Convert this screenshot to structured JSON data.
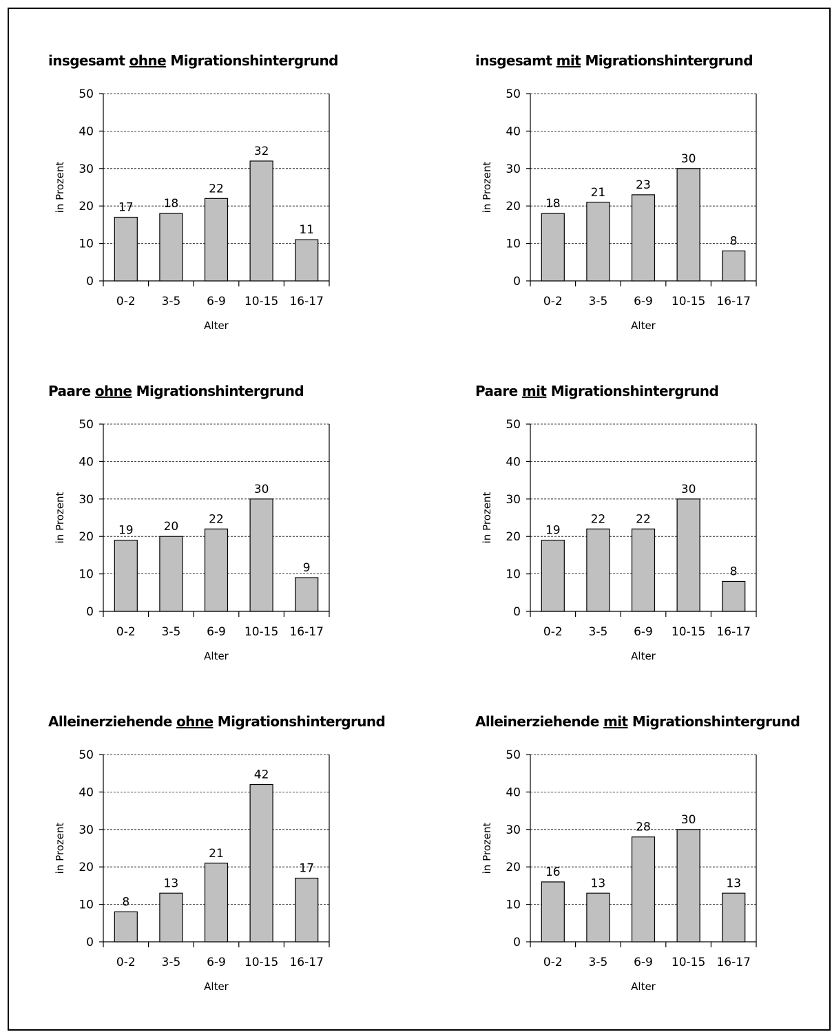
{
  "chart_data": [
    {
      "type": "bar",
      "title": {
        "prefix": "insgesamt ",
        "emphasis": "ohne",
        "suffix": " Migrationshintergrund"
      },
      "categories": [
        "0-2",
        "3-5",
        "6-9",
        "10-15",
        "16-17"
      ],
      "values": [
        17,
        18,
        22,
        32,
        11
      ],
      "xlabel": "Alter",
      "ylabel": "in Prozent",
      "ylim": [
        0,
        50
      ],
      "yticks": [
        0,
        10,
        20,
        30,
        40,
        50
      ],
      "grid": true
    },
    {
      "type": "bar",
      "title": {
        "prefix": "insgesamt ",
        "emphasis": "mit",
        "suffix": " Migrationshintergrund"
      },
      "categories": [
        "0-2",
        "3-5",
        "6-9",
        "10-15",
        "16-17"
      ],
      "values": [
        18,
        21,
        23,
        30,
        8
      ],
      "xlabel": "Alter",
      "ylabel": "in Prozent",
      "ylim": [
        0,
        50
      ],
      "yticks": [
        0,
        10,
        20,
        30,
        40,
        50
      ],
      "grid": true
    },
    {
      "type": "bar",
      "title": {
        "prefix": "Paare ",
        "emphasis": "ohne",
        "suffix": " Migrationshintergrund"
      },
      "categories": [
        "0-2",
        "3-5",
        "6-9",
        "10-15",
        "16-17"
      ],
      "values": [
        19,
        20,
        22,
        30,
        9
      ],
      "xlabel": "Alter",
      "ylabel": "in Prozent",
      "ylim": [
        0,
        50
      ],
      "yticks": [
        0,
        10,
        20,
        30,
        40,
        50
      ],
      "grid": true
    },
    {
      "type": "bar",
      "title": {
        "prefix": "Paare ",
        "emphasis": "mit",
        "suffix": " Migrationshintergrund"
      },
      "categories": [
        "0-2",
        "3-5",
        "6-9",
        "10-15",
        "16-17"
      ],
      "values": [
        19,
        22,
        22,
        30,
        8
      ],
      "xlabel": "Alter",
      "ylabel": "in Prozent",
      "ylim": [
        0,
        50
      ],
      "yticks": [
        0,
        10,
        20,
        30,
        40,
        50
      ],
      "grid": true
    },
    {
      "type": "bar",
      "title": {
        "prefix": "Alleinerziehende ",
        "emphasis": "ohne",
        "suffix": " Migrationshintergrund"
      },
      "categories": [
        "0-2",
        "3-5",
        "6-9",
        "10-15",
        "16-17"
      ],
      "values": [
        8,
        13,
        21,
        42,
        17
      ],
      "xlabel": "Alter",
      "ylabel": "in Prozent",
      "ylim": [
        0,
        50
      ],
      "yticks": [
        0,
        10,
        20,
        30,
        40,
        50
      ],
      "grid": true
    },
    {
      "type": "bar",
      "title": {
        "prefix": "Alleinerziehende ",
        "emphasis": "mit",
        "suffix": " Migrationshintergrund"
      },
      "categories": [
        "0-2",
        "3-5",
        "6-9",
        "10-15",
        "16-17"
      ],
      "values": [
        16,
        13,
        28,
        30,
        13
      ],
      "xlabel": "Alter",
      "ylabel": "in Prozent",
      "ylim": [
        0,
        50
      ],
      "yticks": [
        0,
        10,
        20,
        30,
        40,
        50
      ],
      "grid": true
    }
  ],
  "colors": {
    "bar_fill": "#c0c0c0",
    "bar_stroke": "#000000",
    "grid": "#000000"
  }
}
